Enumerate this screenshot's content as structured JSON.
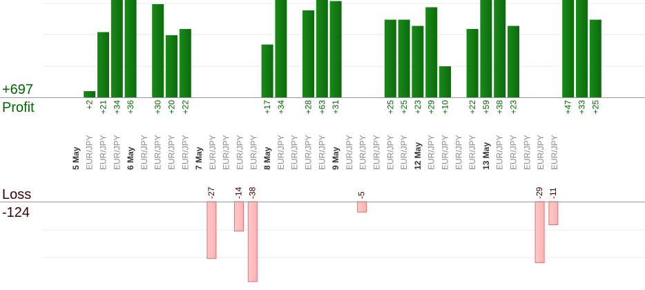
{
  "profit_total": "+697",
  "profit_label": "Profit",
  "loss_label": "Loss",
  "loss_total": "-124",
  "colors": {
    "profit": "#0b6b0b",
    "profit_light": "#1a8a1a",
    "profit_text": "#006600",
    "loss_fill": "#ffb3b3",
    "loss_stroke": "#e07070",
    "loss_text": "#3a0000",
    "axis": "#999999",
    "grid": "#e8e8e8"
  },
  "chart_data": {
    "type": "bar",
    "categories": [
      "5 May",
      "EUR/JPY",
      "EUR/JPY",
      "EUR/JPY",
      "6 May",
      "EUR/JPY",
      "EUR/JPY",
      "EUR/JPY",
      "EUR/JPY",
      "7 May",
      "EUR/JPY",
      "EUR/JPY",
      "EUR/JPY",
      "EUR/JPY",
      "8 May",
      "EUR/JPY",
      "EUR/JPY",
      "EUR/JPY",
      "EUR/JPY",
      "9 May",
      "EUR/JPY",
      "EUR/JPY",
      "EUR/JPY",
      "EUR/JPY",
      "EUR/JPY",
      "12 May",
      "EUR/JPY",
      "EUR/JPY",
      "EUR/JPY",
      "EUR/JPY",
      "13 May",
      "EUR/JPY",
      "EUR/JPY",
      "EUR/JPY",
      "EUR/JPY",
      "EUR/JPY"
    ],
    "date_categories": [
      "5 May",
      "6 May",
      "7 May",
      "8 May",
      "9 May",
      "12 May",
      "13 May"
    ],
    "values": [
      null,
      2,
      21,
      34,
      36,
      null,
      30,
      20,
      22,
      null,
      -27,
      null,
      -14,
      -38,
      17,
      34,
      null,
      28,
      63,
      31,
      null,
      -5,
      null,
      25,
      25,
      23,
      29,
      10,
      null,
      22,
      59,
      38,
      23,
      null,
      -29,
      -11
    ],
    "value_labels": [
      "",
      "+2",
      "+21",
      "+34",
      "+36",
      "",
      "+30",
      "+20",
      "+22",
      "",
      "-27",
      "",
      "-14",
      "-38",
      "+17",
      "+34",
      "",
      "+28",
      "+63",
      "+31",
      "",
      "-5",
      "",
      "+25",
      "+25",
      "+23",
      "+29",
      "+10",
      "",
      "+22",
      "+59",
      "+38",
      "+23",
      "",
      "-29",
      "-11"
    ],
    "extra_columns": [
      {
        "value": 47,
        "label": "+47"
      },
      {
        "value": 33,
        "label": "+33"
      },
      {
        "value": 25,
        "label": "+25"
      }
    ],
    "ylim_profit": [
      0,
      32
    ],
    "ylim_loss": [
      -38,
      0
    ],
    "grid": true
  }
}
